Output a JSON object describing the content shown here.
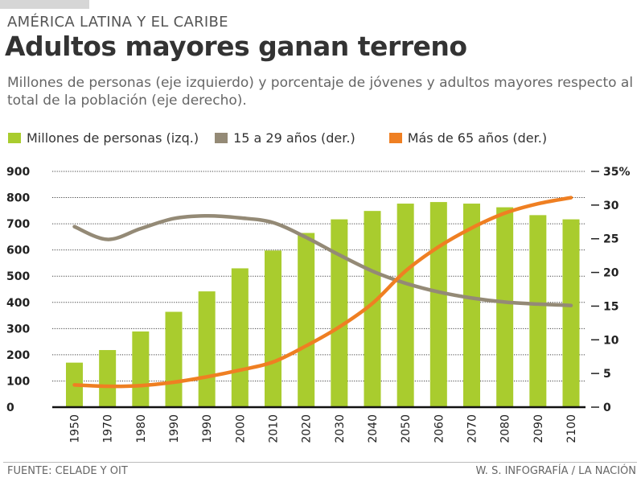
{
  "kicker": "AMÉRICA LATINA Y EL CARIBE",
  "title": "Adultos mayores ganan terreno",
  "subtitle": "Millones de personas (eje izquierdo) y porcentaje de jóvenes y adultos mayores respecto al total de la población (eje derecho).",
  "source": "FUENTE: CELADE Y OIT",
  "credit": "W. S. INFOGRAFÍA / LA NACIÓN",
  "colors": {
    "bars": "#a9cc2e",
    "young": "#948a76",
    "old": "#ef7f22"
  },
  "chart_data": {
    "type": "bar+line",
    "categories": [
      "1950",
      "1970",
      "1980",
      "1990",
      "1990",
      "2000",
      "2010",
      "2020",
      "2030",
      "2040",
      "2050",
      "2060",
      "2070",
      "2080",
      "2090",
      "2100"
    ],
    "series": [
      {
        "name": "Millones de personas (izq.)",
        "axis": "left",
        "type": "bar",
        "values": [
          170,
          218,
          289,
          364,
          442,
          530,
          598,
          665,
          717,
          749,
          777,
          783,
          777,
          763,
          733,
          717
        ]
      },
      {
        "name": "15 a 29 años (der.)",
        "axis": "right",
        "type": "line",
        "values": [
          26.8,
          24.9,
          26.5,
          28.0,
          28.4,
          28.1,
          27.4,
          25.2,
          22.6,
          20.2,
          18.4,
          17.1,
          16.2,
          15.6,
          15.3,
          15.1
        ]
      },
      {
        "name": "Más de 65 años (der.)",
        "axis": "right",
        "type": "line",
        "values": [
          3.3,
          3.1,
          3.2,
          3.7,
          4.5,
          5.5,
          6.7,
          9.1,
          11.9,
          15.4,
          20.2,
          23.8,
          26.6,
          28.8,
          30.2,
          31.1
        ]
      }
    ],
    "left_axis": {
      "ylim": [
        0,
        900
      ],
      "ticks": [
        "0",
        "100",
        "200",
        "300",
        "400",
        "500",
        "600",
        "700",
        "800",
        "900"
      ]
    },
    "right_axis": {
      "ylim": [
        0,
        35
      ],
      "ticks": [
        "0",
        "5",
        "10",
        "15",
        "20",
        "25",
        "30",
        "35%"
      ]
    },
    "grid": true,
    "legend": "top"
  }
}
